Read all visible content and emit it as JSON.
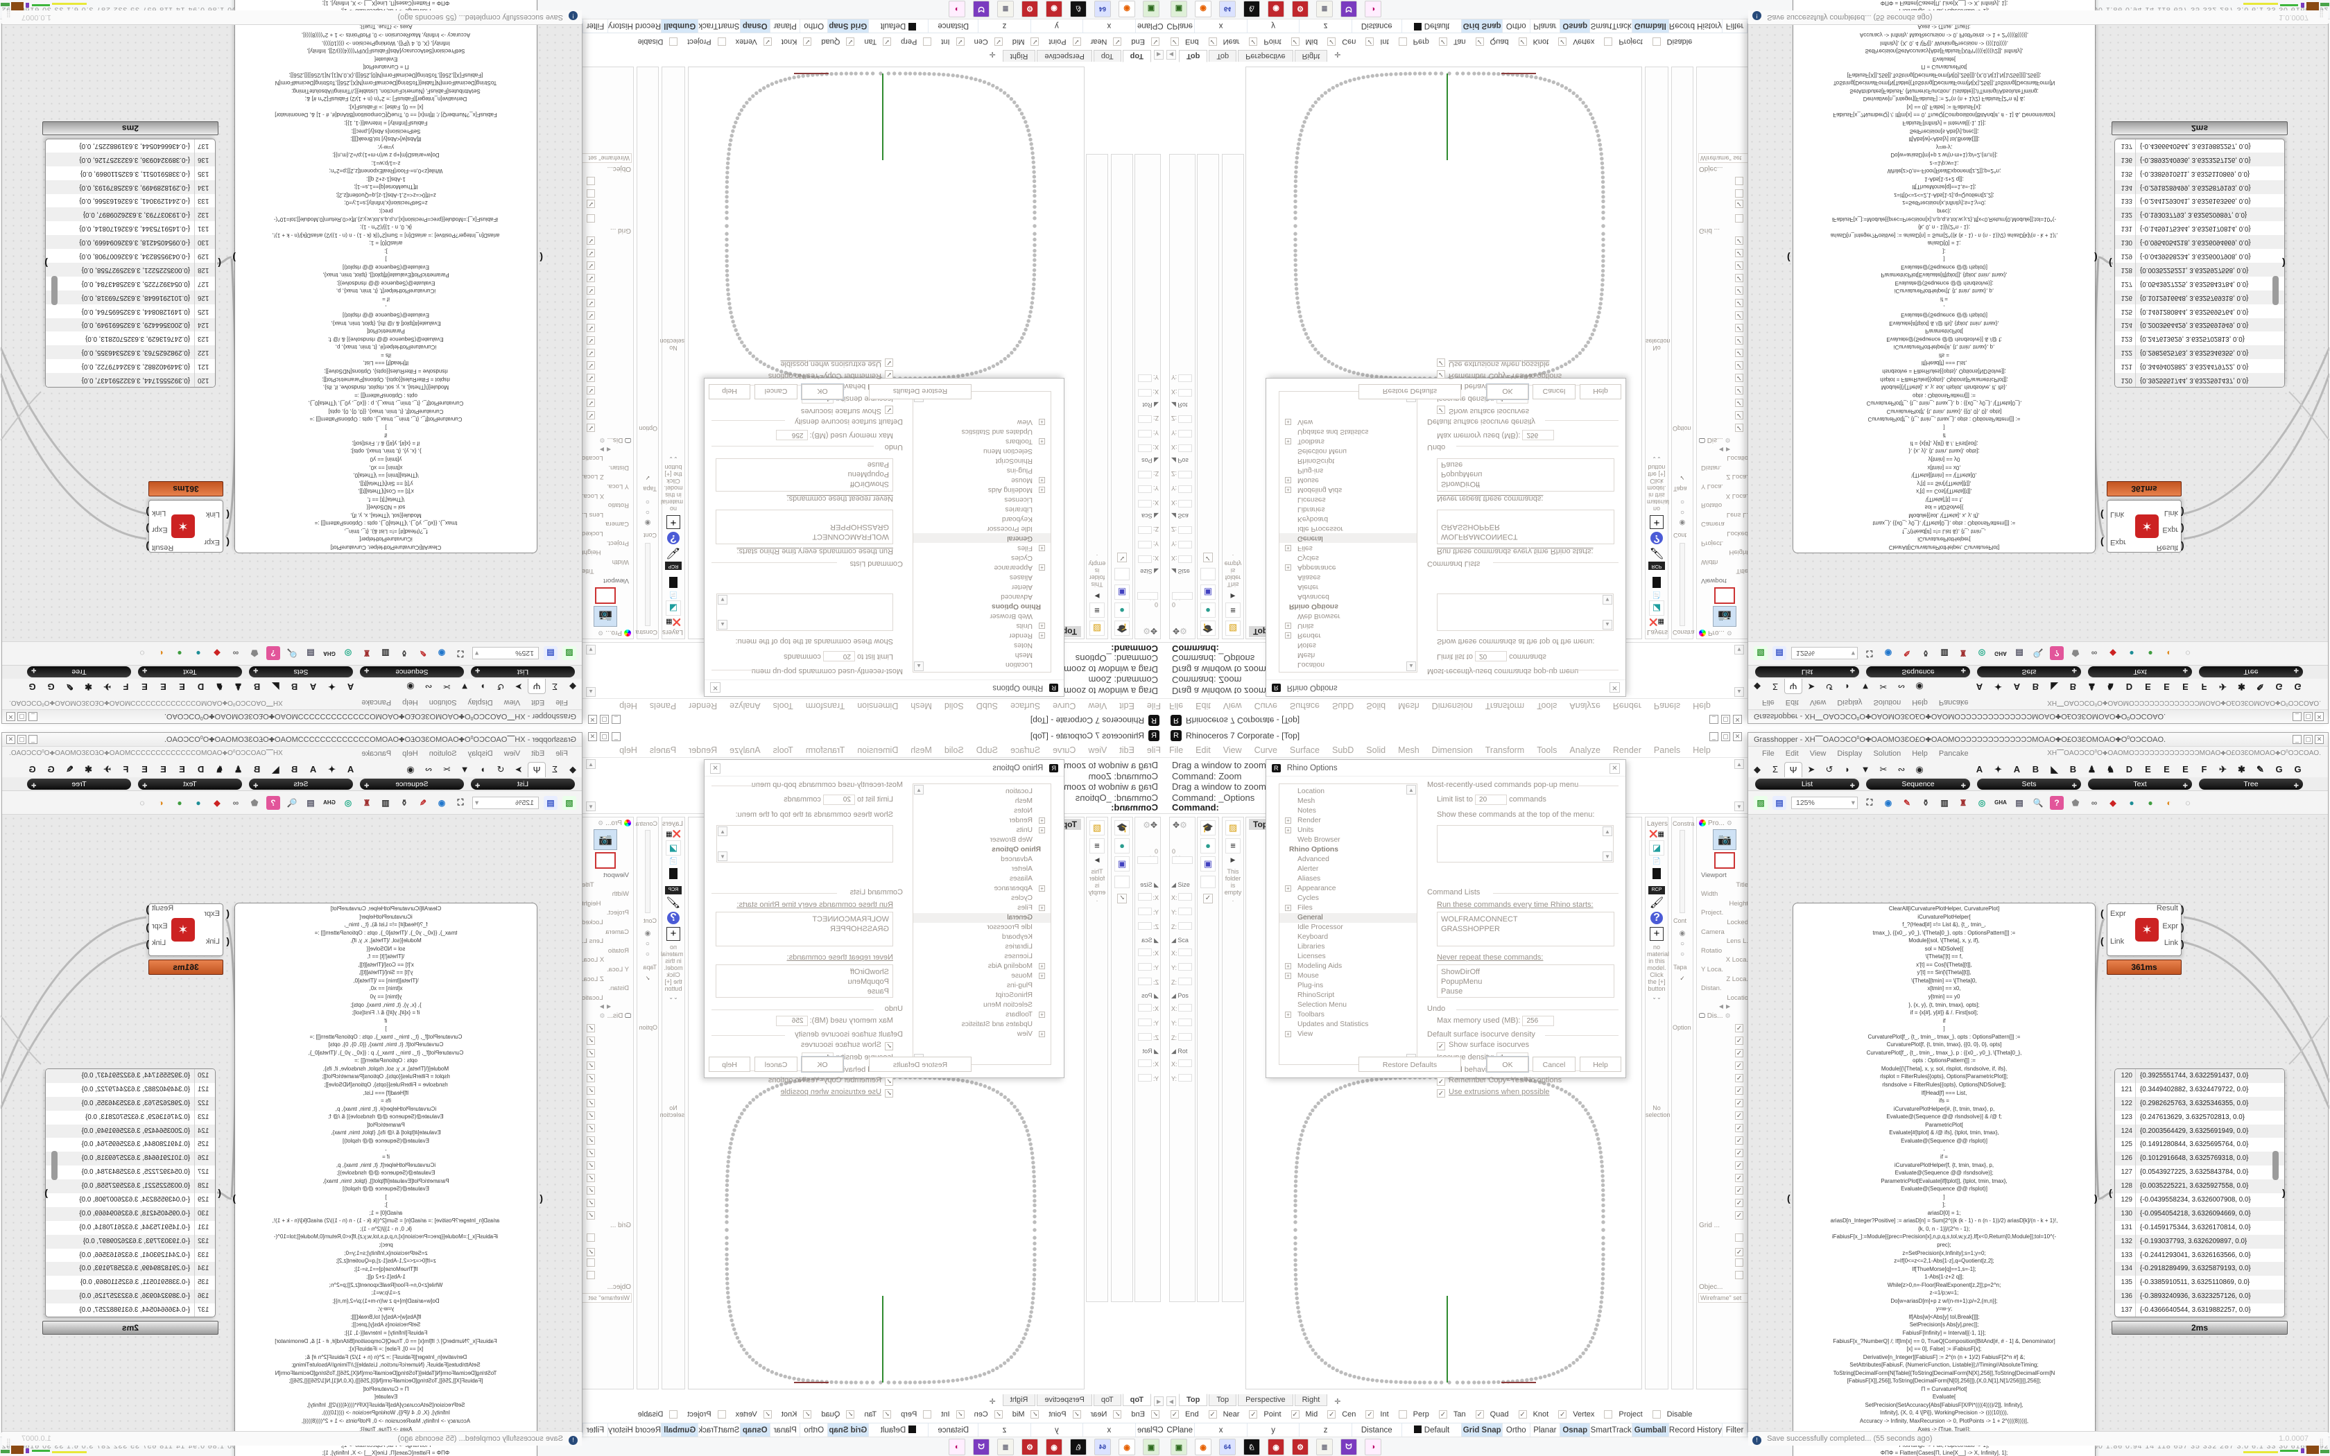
{
  "rhino": {
    "title": "Rhinoceros 7 Corporate - [Top]",
    "menu": [
      "File",
      "Edit",
      "View",
      "Curve",
      "Surface",
      "SubD",
      "Solid",
      "Mesh",
      "Dimension",
      "Transform",
      "Tools",
      "Analyze",
      "Render",
      "Panels",
      "Help"
    ],
    "command_lines": [
      "Drag a window to zoom (",
      "Command: Zoom",
      "Drag a window to zoom (",
      "Command: _Options"
    ],
    "command_prompt": "Command:",
    "viewport_label": "Top",
    "viewport_tabs": [
      "Top",
      "Top",
      "Perspective",
      "Right"
    ],
    "osnap_items": [
      {
        "label": "End",
        "checked": true
      },
      {
        "label": "Near",
        "checked": true
      },
      {
        "label": "Point",
        "checked": true
      },
      {
        "label": "Mid",
        "checked": true
      },
      {
        "label": "Cen",
        "checked": true
      },
      {
        "label": "Int",
        "checked": true
      },
      {
        "label": "Perp",
        "checked": false
      },
      {
        "label": "Tan",
        "checked": true
      },
      {
        "label": "Quad",
        "checked": true
      },
      {
        "label": "Knot",
        "checked": true
      },
      {
        "label": "Vertex",
        "checked": true
      },
      {
        "label": "Project",
        "checked": false
      },
      {
        "label": "Disable",
        "checked": false
      }
    ],
    "status_fields": [
      "CPlane",
      "x",
      "y",
      "z",
      "Distance",
      "Default"
    ],
    "status_toggles": [
      {
        "label": "Grid Snap",
        "active": true
      },
      {
        "label": "Ortho",
        "active": false
      },
      {
        "label": "Planar",
        "active": false
      },
      {
        "label": "Osnap",
        "active": true
      },
      {
        "label": "SmartTrack",
        "active": false
      },
      {
        "label": "Gumball",
        "active": true
      },
      {
        "label": "Record History",
        "active": false
      },
      {
        "label": "Filter",
        "active": false
      }
    ],
    "boxedit": {
      "objects": "0 objects",
      "sections": [
        {
          "label": "Size",
          "fields": [
            "X:",
            "Y:",
            "Z:"
          ]
        },
        {
          "label": "Sca",
          "fields": [
            "X:",
            "Y:",
            "Z:"
          ]
        },
        {
          "label": "Pos",
          "fields": [
            "X:",
            "Y:",
            "Z:"
          ]
        },
        {
          "label": "Rot",
          "fields": [
            "X:",
            "Y:"
          ]
        }
      ]
    },
    "folder_panel_text": "This folder is empty.",
    "layers_tab": "Layers",
    "constraint_labels": [
      "Constra",
      "Cont",
      "Tapa",
      "Option"
    ],
    "materials": {
      "rcp": "RCP",
      "no_material_text": "no material in this model. Click the [+] button",
      "no_selection": "No selection"
    },
    "properties": {
      "tab": "Pro...",
      "rows": [
        "Viewport",
        "Title",
        "Width",
        "Height",
        "Project.",
        "Locked",
        "Camera",
        "Lens L.",
        "Rotatio",
        "X Loca.",
        "Y Loca.",
        "Z Loca.",
        "Distan.",
        "Locatio"
      ],
      "display_tab": "Dis...",
      "display_check_count": 16,
      "grid_label": "Grid ...",
      "object_label": "Objec...",
      "wireframe_label": "Wireframe\" set"
    }
  },
  "options_dialog": {
    "title": "Rhino Options",
    "tree": [
      {
        "l": "Location"
      },
      {
        "l": "Mesh"
      },
      {
        "l": "Notes"
      },
      {
        "l": "Render",
        "e": 1
      },
      {
        "l": "Units",
        "e": 1
      },
      {
        "l": "Web Browser"
      },
      {
        "l": "Rhino Options",
        "h": 1
      },
      {
        "l": "Advanced"
      },
      {
        "l": "Alerter"
      },
      {
        "l": "Aliases"
      },
      {
        "l": "Appearance",
        "e": 1
      },
      {
        "l": "Cycles"
      },
      {
        "l": "Files",
        "e": 1
      },
      {
        "l": "General",
        "s": 1
      },
      {
        "l": "Idle Processor"
      },
      {
        "l": "Keyboard"
      },
      {
        "l": "Libraries"
      },
      {
        "l": "Licenses"
      },
      {
        "l": "Modeling Aids",
        "e": 1
      },
      {
        "l": "Mouse",
        "e": 1
      },
      {
        "l": "Plug-ins"
      },
      {
        "l": "RhinoScript"
      },
      {
        "l": "Selection Menu"
      },
      {
        "l": "Toolbars",
        "e": 1
      },
      {
        "l": "Updates and Statistics"
      },
      {
        "l": "View",
        "e": 1
      }
    ],
    "mru_header": "Most-recently-used commands pop-up menu",
    "limit_label": "Limit list to",
    "limit_value": "20",
    "limit_suffix": "commands",
    "show_label": "Show these commands at the top of the menu:",
    "cmdlists_header": "Command Lists",
    "run_label": "Run these commands every time Rhino starts:",
    "run_values": [
      "WOLFRAMCONNECT",
      "GRASSHOPPER"
    ],
    "never_label": "Never repeat these commands:",
    "never_values": [
      "ShowDirOff",
      "PopupMenu",
      "Pause"
    ],
    "undo_header": "Undo",
    "maxmem_label": "Max memory used (MB):",
    "maxmem_value": "256",
    "iso_header": "Default surface isocurve density",
    "showiso_label": "Show surface isocurves",
    "isodensity_label": "Isocurve density:",
    "isodensity_value": "1",
    "behavior_header": "Command behavior",
    "remember_label": "Remember Copy=Yes/No options",
    "extrusions_label": "Use extrusions when possible",
    "buttons": [
      "Restore Defaults",
      "OK",
      "Cancel",
      "Help"
    ]
  },
  "grasshopper": {
    "title": "Grasshopper - XH⎺OAOƆCO⁰O✚OAOMO3ƐO£O✚OAOMOƆƆƆƆƆƆƆƆƆƆƆƆƆMOAO✚O£O3ƐOMOAO✚O⁰OƆCOAO.",
    "menu": [
      "File",
      "Edit",
      "View",
      "Display",
      "Solution",
      "Help",
      "Pancake"
    ],
    "menu_doc": "XH⎺OAOƆCO⁰O✚OAOMOƆƆƆƆƆƆƆƆƆƆƆƆƆMOAO✚O£O3ƐOMOAO✚O⁰OƆCOAO.",
    "tab_glyphs": [
      "◆",
      "Σ",
      "Ψ",
      "➤",
      "↺",
      "◗",
      "▼",
      "✂",
      "∾",
      "◉"
    ],
    "selected_tab_index": 2,
    "letter_tabs": [
      "A",
      "✦",
      "A",
      "B",
      "◣",
      "B",
      "♟",
      "♞",
      "D",
      "E",
      "E",
      "E",
      "F",
      "✈",
      "✱",
      "✎",
      "G",
      "G"
    ],
    "pills": [
      "List",
      "Sequence",
      "Sets",
      "Text",
      "Tree"
    ],
    "zoom_value": "125%",
    "toolbar_icons": [
      "open-folder",
      "save-floppy",
      "zoom-combo",
      "frame-extents",
      "eye-preview",
      "red-sketch",
      "jug",
      "speaker",
      "waypoint",
      "disc",
      "gha",
      "doc-script",
      "search-s",
      "pink-help",
      "gray-gem",
      "rings",
      "red-gem",
      "teal-ball",
      "green-ball",
      "orange-ball",
      "dashed-circle"
    ],
    "component": {
      "inputs": [
        "Expr",
        "Link"
      ],
      "outputs": [
        "Result",
        "Expr",
        "Link"
      ],
      "time_badge": "361ms"
    },
    "code_badge": "0ms",
    "list_badge": "2ms",
    "status_text": "Save successfully completed... (55 seconds ago)",
    "version": "1.0.0007",
    "code_lines": [
      "ClearAll[iCurvaturePlotHelper, CurvaturePlot]",
      "iCurvaturePlotHelper[",
      "f_?(Head[#] =!= List &), {t_, tmin_,",
      "tmax_}, {{x0_, y0_}, \\[Theta]0_}, opts : OptionsPattern[]] :=",
      "Module[{sol, \\[Theta], x, y, if},",
      "sol = NDSolve[{",
      "\\[Theta]'[t] == f,",
      "x'[t] == Cos[\\[Theta][t]],",
      "y'[t] == Sin[\\[Theta][t]],",
      "\\[Theta][tmin] == \\[Theta]0,",
      "x[tmin] == x0,",
      "y[tmin] == y0",
      "}, {x, y}, {t, tmin, tmax}, opts];",
      "if = {x[#], y[#]} & /. First[sol];",
      "if",
      "]",
      "CurvaturePlot[f_, {t_, tmin_, tmax_}, opts : OptionsPattern[]] :=",
      "CurvaturePlot[f, {t, tmin, tmax}, {{0, 0}, 0}, opts]",
      "CurvaturePlot[f_, {t_, tmin_, tmax_}, p : {{x0_, y0_}, \\[Theta]0_},",
      "opts : OptionsPattern[]] :=",
      "Module[{\\[Theta], x, y, sol, rlsplot, rlsndsolve, if, ifs},",
      "rlsplot = FilterRules[{opts}, Options[ParametricPlot]];",
      "rlsndsolve = FilterRules[{opts}, Options[NDSolve]];",
      "If[Head[f] === List,",
      "ifs =",
      "iCurvaturePlotHelper[#, {t, tmin, tmax}, p,",
      "Evaluate@(Sequence @@ rlsndsolve)] & /@ f;",
      "ParametricPlot[",
      "Evaluate[#[tplot] & /@ ifs], {tplot, tmin, tmax},",
      "Evaluate@(Sequence @@ rlsplot)]",
      ",",
      "if =",
      "iCurvaturePlotHelper[f, {t, tmin, tmax}, p,",
      "Evaluate@(Sequence @@ rlsndsolve)];",
      "ParametricPlot[Evaluate[if[tplot]], {tplot, tmin, tmax},",
      "Evaluate@(Sequence @@ rlsplot)]",
      "]",
      "];",
      "",
      "ariasD[0] = 1;",
      "ariasD[n_Integer?Positive] := ariasD[n] = Sum[2^((k (k - 1) - n (n - 1))/2) ariasD[k]/(n - k + 1)!,",
      "{k, 0, n - 1}]/(2^n - 1);",
      "iFabiusF[x_]:=Module[{prec=Precision[x],n,p,q,s,tol,w,y,z},If[x<0,Return[0,Module]];tol=10^(-",
      "prec);",
      "z=SetPrecision[x,Infinity];s=1;y=0;",
      "z=If[0<=z<=2,1-Abs[1-z],q=Quotient[z,2];",
      "If[ThueMorse[q]==1,s=-1];",
      "1-Abs[1-z+2 q]];",
      "While[z>0,n=-Floor[RealExponent[z,2]];p=2^n;",
      "z-=1/p;w=1;",
      "Do[w=ariasD[m]+p z w/(n-m+1);p/=2,{m,n}];",
      "y=w-y;",
      "If[Abs[w]<Abs[y] tol,Break[]]];",
      "SetPrecision[s Abs[y],prec]];",
      "FabiusF[Infinity] = Interval[{-1, 1}];",
      "FabiusF[x_?NumberQ] /; If[Im[x] == 0, TrueQ[Composition[BitAnd[#, # - 1] &, Denominator]",
      "[x] == 0], False] := iFabiusF[x];",
      "Derivative[n_Integer][FabiusF] := 2^(n (n + 1)/2) FabiusF[2^n #] &;",
      "SetAttributes[FabiusF, {NumericFunction, Listable}];//Timing//AbsoluteTiming;",
      "",
      "ToString[DecimalForm[N[Table[{ToString[DecimalForm[N[X],256]],ToString[DecimalForm[N",
      "[FabiusF[X]],256]],ToString[DecimalForm[N[0],256]]},{X,0,N[1],N[1/256]}]],256]];",
      "",
      "Π = CurvaturePlot[",
      "Evaluate[",
      "SetPrecision[SetAccuracy[Abs[FabiusF[X/Pi*((((4))))/2]], Infinity],",
      "Infinity], {X, 0, 4 \\[Pi]}, WorkingPrecision -> ((((10)))),",
      "Accuracy -> Infinity, MaxRecursion -> 0, PlotPoints -> 1 + 2^((((8))))],",
      "Axes -> {True, True}];",
      "Show[Π, Frame -> True, FrameTicks -> {{-1, 0, 1}, {-1, 0, 1}},",
      "PlotRange -> Full, AspectRatio -> 1];",
      "ΦΠΦ = Flatten[Cases[Π, Line[X__] -> X, Infinity], 1];",
      "Export[\"ΦΠΦ\", ΦΠΦ, \"CSV\"];",
      "ΦΠΦ"
    ],
    "point_list": [
      {
        "i": "120",
        "v": "{0.3925551744, 3.6322591437, 0.0}"
      },
      {
        "i": "121",
        "v": "{0.3449402882, 3.6324479722, 0.0}"
      },
      {
        "i": "122",
        "v": "{0.2982625763, 3.6325346355, 0.0}"
      },
      {
        "i": "123",
        "v": "{0.247613629, 3.6325702813, 0.0}"
      },
      {
        "i": "124",
        "v": "{0.2003564429, 3.6325691949, 0.0}"
      },
      {
        "i": "125",
        "v": "{0.1491280844, 3.6325695764, 0.0}"
      },
      {
        "i": "126",
        "v": "{0.1012916648, 3.6325769318, 0.0}"
      },
      {
        "i": "127",
        "v": "{0.0543927225, 3.6325843784, 0.0}"
      },
      {
        "i": "128",
        "v": "{0.0035225221, 3.6325927558, 0.0}"
      },
      {
        "i": "129",
        "v": "{-0.0439558234, 3.6326007908, 0.0}"
      },
      {
        "i": "130",
        "v": "{-0.0954054218, 3.6326094669, 0.0}"
      },
      {
        "i": "131",
        "v": "{-0.1459175344, 3.6326170814, 0.0}"
      },
      {
        "i": "132",
        "v": "{-0.193037793, 3.6326209897, 0.0}"
      },
      {
        "i": "133",
        "v": "{-0.2441293041, 3.6326163566, 0.0}"
      },
      {
        "i": "134",
        "v": "{-0.2918289499, 3.6325879193, 0.0}"
      },
      {
        "i": "135",
        "v": "{-0.3385910511, 3.6325110869, 0.0}"
      },
      {
        "i": "136",
        "v": "{-0.3893240936, 3.6323257126, 0.0}"
      },
      {
        "i": "137",
        "v": "{-0.4366640544, 3.6319882257, 0.0}"
      }
    ]
  },
  "desktop": {
    "stats": "0.04 0.00 1.86 0.94  14  118  657  35  332  287  3.0  6.1  33  30 61607592",
    "taskbar_icons": [
      "launcher",
      "firefox",
      "floppy-64",
      "rhino-app",
      "red-badge",
      "red-gear",
      "notepad",
      "mask",
      "palette"
    ]
  }
}
